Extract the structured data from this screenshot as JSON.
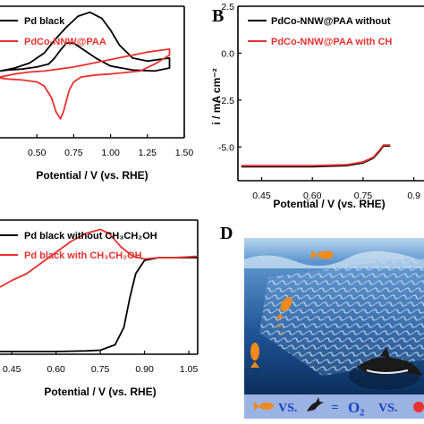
{
  "panels": {
    "B": {
      "label": "B"
    },
    "D": {
      "label": "D"
    }
  },
  "chart_data": [
    {
      "panel": "A",
      "type": "line",
      "xlabel": "Potential / V (vs. RHE)",
      "ylabel": "",
      "xticks": [
        "0.50",
        "0.75",
        "1.00",
        "1.25",
        "1.50"
      ],
      "xlim": [
        0.25,
        1.5
      ],
      "ylim": [
        -3.4,
        3.2
      ],
      "series": [
        {
          "name": "Pd black",
          "color": "#000000",
          "x": [
            0.25,
            0.35,
            0.45,
            0.55,
            0.62,
            0.7,
            0.78,
            0.86,
            0.94,
            1.0,
            1.06,
            1.15,
            1.25,
            1.35,
            1.4,
            1.4,
            1.3,
            1.15,
            1.0,
            0.9,
            0.8,
            0.75,
            0.7,
            0.66,
            0.62,
            0.58,
            0.5,
            0.4,
            0.3,
            0.25
          ],
          "y": [
            -0.05,
            0.1,
            0.35,
            0.85,
            1.5,
            2.15,
            2.7,
            2.9,
            2.6,
            2.0,
            1.25,
            0.6,
            0.45,
            0.55,
            0.6,
            0.1,
            -0.05,
            0.0,
            0.2,
            0.6,
            1.1,
            1.35,
            1.35,
            1.0,
            0.6,
            0.3,
            0.15,
            0.05,
            0.0,
            -0.05
          ]
        },
        {
          "name": "PdCo-NNW@PAA",
          "color": "#e8312f",
          "x": [
            0.25,
            0.35,
            0.45,
            0.55,
            0.65,
            0.75,
            0.85,
            0.95,
            1.05,
            1.15,
            1.25,
            1.35,
            1.4,
            1.4,
            1.3,
            1.2,
            1.0,
            0.9,
            0.8,
            0.75,
            0.72,
            0.68,
            0.66,
            0.63,
            0.6,
            0.55,
            0.5,
            0.4,
            0.3,
            0.25
          ],
          "y": [
            -0.35,
            -0.2,
            -0.1,
            -0.05,
            0.05,
            0.15,
            0.3,
            0.45,
            0.6,
            0.75,
            0.9,
            1.0,
            1.05,
            0.75,
            0.3,
            -0.05,
            -0.2,
            -0.25,
            -0.35,
            -0.6,
            -1.0,
            -2.1,
            -2.45,
            -2.1,
            -1.4,
            -0.8,
            -0.6,
            -0.5,
            -0.45,
            -0.4
          ]
        }
      ]
    },
    {
      "panel": "B",
      "type": "line",
      "xlabel": "Potential / V (vs. RHE)",
      "ylabel": "i / mA cm⁻²",
      "xticks": [
        "0.45",
        "0.60",
        "0.75",
        "0.9"
      ],
      "xtick_values": [
        0.45,
        0.6,
        0.75,
        0.9
      ],
      "yticks": [
        "2.5",
        "0.0",
        "-2.5",
        "-5.0"
      ],
      "ytick_values": [
        2.5,
        0.0,
        -2.5,
        -5.0
      ],
      "xlim": [
        0.38,
        0.93
      ],
      "ylim": [
        -6.8,
        2.5
      ],
      "series": [
        {
          "name": "PdCo-NNW@PAA without",
          "color": "#000000",
          "x": [
            0.39,
            0.5,
            0.6,
            0.7,
            0.75,
            0.78,
            0.8,
            0.81,
            0.82,
            0.83
          ],
          "y": [
            -6.05,
            -6.05,
            -6.05,
            -6.0,
            -5.85,
            -5.6,
            -5.2,
            -4.95,
            -4.95,
            -4.95
          ]
        },
        {
          "name": "PdCo-NNW@PAA with CH",
          "color": "#e8312f",
          "x": [
            0.39,
            0.5,
            0.6,
            0.7,
            0.75,
            0.78,
            0.8,
            0.81,
            0.82,
            0.83
          ],
          "y": [
            -6.0,
            -6.0,
            -6.0,
            -5.95,
            -5.8,
            -5.55,
            -5.15,
            -4.9,
            -4.9,
            -4.9
          ]
        }
      ]
    },
    {
      "panel": "C",
      "type": "line",
      "xlabel": "Potential / V (vs. RHE)",
      "ylabel": "",
      "xticks": [
        "0.45",
        "0.60",
        "0.75",
        "0.90",
        "1.05"
      ],
      "xtick_values": [
        0.45,
        0.6,
        0.75,
        0.9,
        1.05
      ],
      "xlim": [
        0.41,
        1.08
      ],
      "ylim": [
        0,
        1
      ],
      "series": [
        {
          "name": "Pd black without CH₃CH₂OH",
          "color": "#000000",
          "x": [
            0.41,
            0.5,
            0.6,
            0.7,
            0.75,
            0.8,
            0.83,
            0.85,
            0.87,
            0.9,
            0.95,
            1.0,
            1.08
          ],
          "y": [
            0.02,
            0.02,
            0.02,
            0.025,
            0.03,
            0.07,
            0.2,
            0.42,
            0.6,
            0.7,
            0.72,
            0.72,
            0.72
          ]
        },
        {
          "name": "Pd black with CH₃CH₂OH",
          "color": "#e8312f",
          "x": [
            0.41,
            0.45,
            0.5,
            0.55,
            0.6,
            0.65,
            0.7,
            0.75,
            0.78,
            0.82,
            0.86,
            0.9,
            0.95,
            1.0,
            1.08
          ],
          "y": [
            0.5,
            0.55,
            0.6,
            0.68,
            0.76,
            0.84,
            0.9,
            0.93,
            0.9,
            0.8,
            0.73,
            0.71,
            0.72,
            0.72,
            0.73
          ]
        }
      ]
    }
  ],
  "panel_d": {
    "caption_vs1": "VS.",
    "caption_eq": "=",
    "caption_o2": "O₂",
    "caption_vs2": "VS.",
    "colors": {
      "sea_top": "#4a83c6",
      "sea_bottom": "#0c2f5c",
      "sky": "#b9d7ef",
      "caption_bg": "#9ab3e2",
      "o2": "#1f3fbf",
      "vs": "#1f3fbf",
      "red": "#e8312f",
      "fish": "#f08a1c",
      "mesh": "#c9d9f0"
    },
    "icons": [
      "fish-icon",
      "dolphin-icon",
      "red-fish-icon"
    ]
  }
}
